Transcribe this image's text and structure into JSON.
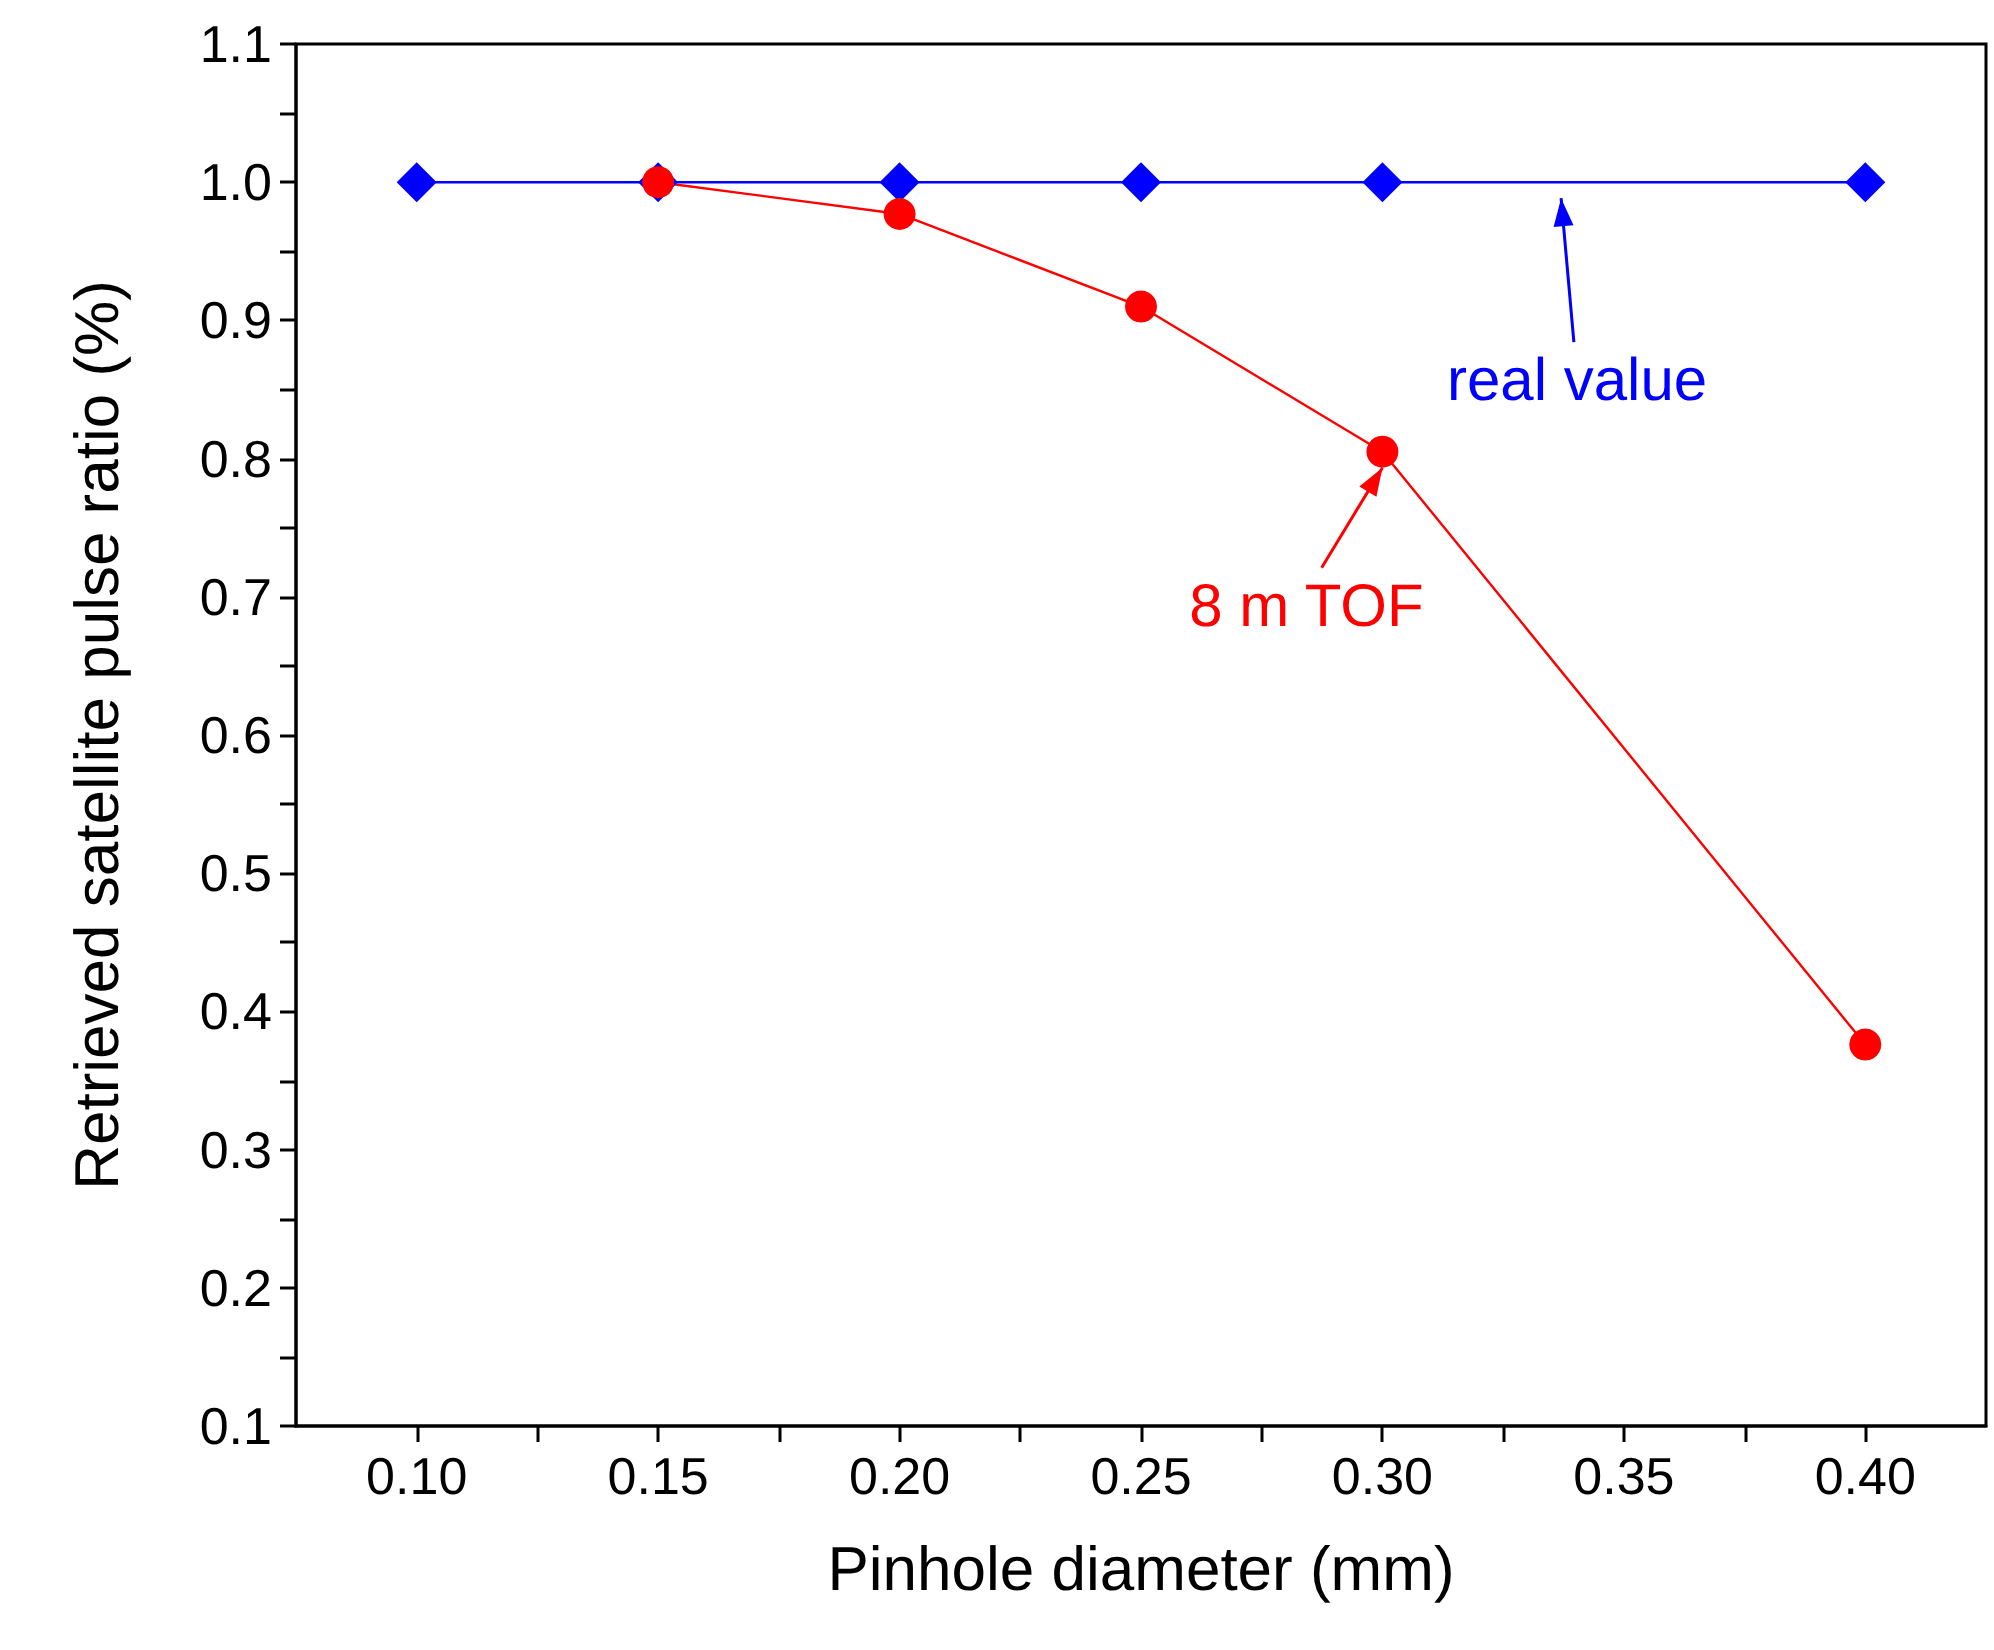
{
  "chart_data": {
    "type": "line",
    "xlabel": "Pinhole diameter (mm)",
    "ylabel": "Retrieved satellite pulse ratio (%)",
    "x": [
      0.1,
      0.15,
      0.2,
      0.25,
      0.3,
      0.4
    ],
    "series": [
      {
        "color": "#0000ff",
        "marker": "diamond",
        "values": [
          1.0,
          1.0,
          1.0,
          1.0,
          1.0,
          1.0
        ]
      },
      {
        "color": "#ff0000",
        "marker": "circle",
        "values": [
          null,
          1.0,
          0.977,
          0.91,
          0.805,
          0.376
        ]
      }
    ],
    "xlim": [
      0.075,
      0.425
    ],
    "xticks": [
      {
        "value": 0.1,
        "label": "0.10"
      },
      {
        "value": 0.125,
        "label": null
      },
      {
        "value": 0.15,
        "label": "0.15"
      },
      {
        "value": 0.175,
        "label": null
      },
      {
        "value": 0.2,
        "label": "0.20"
      },
      {
        "value": 0.225,
        "label": null
      },
      {
        "value": 0.25,
        "label": "0.25"
      },
      {
        "value": 0.275,
        "label": null
      },
      {
        "value": 0.3,
        "label": "0.30"
      },
      {
        "value": 0.325,
        "label": null
      },
      {
        "value": 0.35,
        "label": "0.35"
      },
      {
        "value": 0.375,
        "label": null
      },
      {
        "value": 0.4,
        "label": "0.40"
      }
    ],
    "ylim": [
      0.1,
      1.1
    ],
    "yticks": [
      0.1,
      {
        "value": 0.15,
        "label": null
      },
      0.2,
      {
        "value": 0.25,
        "label": null
      },
      0.3,
      {
        "value": 0.35,
        "label": null
      },
      0.4,
      {
        "value": 0.45,
        "label": null
      },
      0.5,
      {
        "value": 0.55,
        "label": null
      },
      0.6,
      {
        "value": 0.65,
        "label": null
      },
      0.7,
      {
        "value": 0.75,
        "label": null
      },
      0.8,
      {
        "value": 0.85,
        "label": null
      },
      0.9,
      {
        "value": 0.95,
        "label": null
      },
      {
        "value": 1.0,
        "label": "1.0"
      },
      {
        "value": 1.05,
        "label": null
      },
      1.1
    ],
    "annotations": [
      {
        "text": "real value",
        "x": 0.337,
        "y": 1.0
      },
      {
        "text": "8 m TOF",
        "x": 0.3,
        "y": 0.805
      }
    ],
    "grid": false,
    "line_style": "solid"
  }
}
